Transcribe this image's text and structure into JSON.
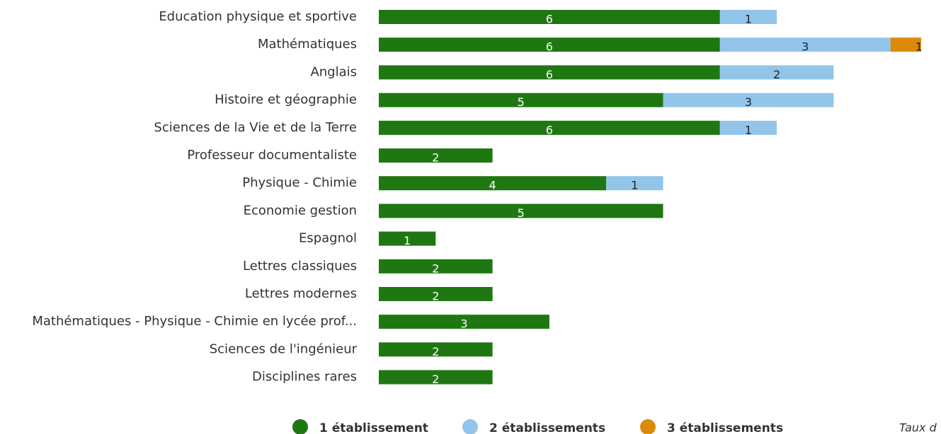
{
  "chart_data": {
    "type": "stacked_bar_horizontal",
    "categories": [
      "Education physique et sportive",
      "Mathématiques",
      "Anglais",
      "Histoire et géographie",
      "Sciences de la Vie et de la Terre",
      "Professeur documentaliste",
      "Physique - Chimie",
      "Economie gestion",
      "Espagnol",
      "Lettres classiques",
      "Lettres modernes",
      "Mathématiques - Physique - Chimie en lycée prof...",
      "Sciences de l'ingénieur",
      "Disciplines rares"
    ],
    "series": [
      {
        "name": "1 établissement",
        "color": "#1f7712",
        "values": [
          6,
          6,
          6,
          5,
          6,
          2,
          4,
          5,
          1,
          2,
          2,
          3,
          2,
          2
        ]
      },
      {
        "name": "2 établissements",
        "color": "#93c5eb",
        "values": [
          1,
          3,
          2,
          3,
          1,
          null,
          1,
          null,
          null,
          null,
          null,
          null,
          null,
          null
        ]
      },
      {
        "name": "3 établissements",
        "color": "#db8a0a",
        "values": [
          null,
          1,
          null,
          null,
          null,
          null,
          null,
          null,
          null,
          null,
          null,
          null,
          null,
          null
        ]
      }
    ],
    "note": "Taux d"
  }
}
